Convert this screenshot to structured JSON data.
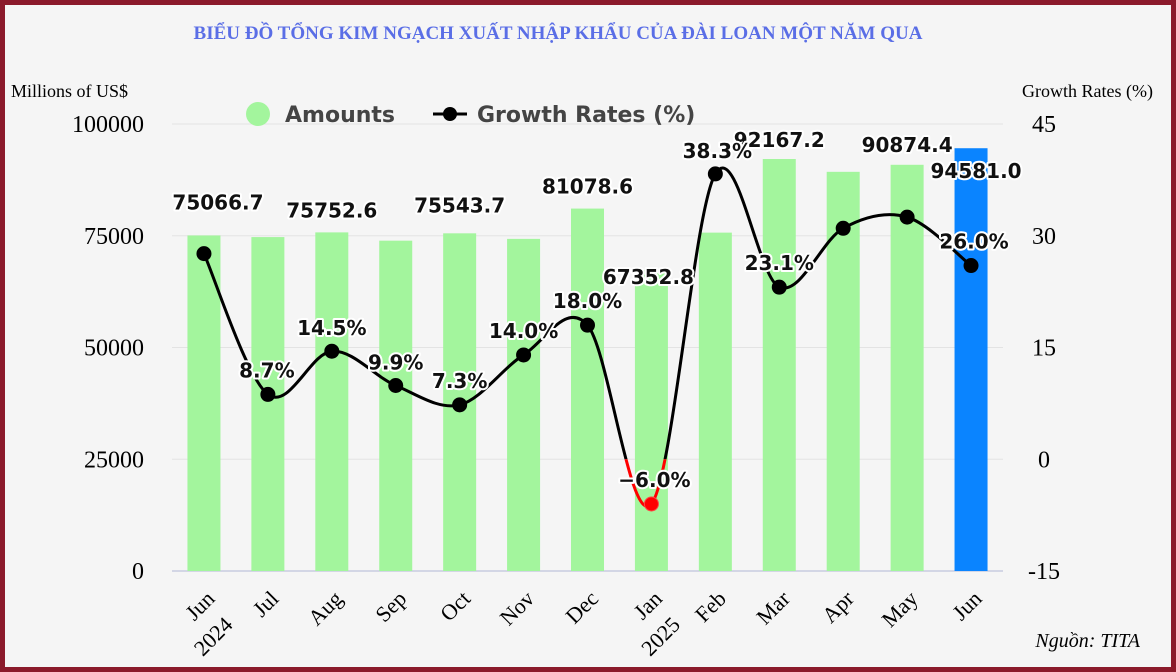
{
  "chart_data": {
    "type": "bar",
    "title": "BIỂU ĐỒ TỔNG KIM NGẠCH XUẤT NHẬP KHẨU CỦA ĐÀI LOAN MỘT NĂM QUA",
    "ylabel_left": "Millions of US$",
    "ylabel_right": "Growth Rates (%)",
    "source": "Nguồn: TITA",
    "categories": [
      "Jun",
      "Jul",
      "Aug",
      "Sep",
      "Oct",
      "Nov",
      "Dec",
      "Jan",
      "Feb",
      "Mar",
      "Apr",
      "May",
      "Jun"
    ],
    "year_labels": [
      {
        "index": 0,
        "label": "2024"
      },
      {
        "index": 7,
        "label": "2025"
      }
    ],
    "ylim_left": [
      0,
      100000
    ],
    "yticks_left": [
      "0",
      "25000",
      "50000",
      "75000",
      "100000"
    ],
    "ylim_right": [
      -15,
      45
    ],
    "yticks_right": [
      "-15",
      "0",
      "15",
      "30",
      "45"
    ],
    "legend_position": "top",
    "grid": true,
    "series": [
      {
        "name": "Amounts",
        "kind": "bar",
        "color": "#a3f59d",
        "highlight_color": "#0a84ff",
        "highlight_index": 12,
        "values": [
          75066.7,
          74700,
          75752.6,
          73900,
          75543.7,
          74300,
          81078.6,
          67352.8,
          75700,
          92167.2,
          89300,
          90874.4,
          94581.0
        ],
        "data_labels": [
          {
            "index": 0,
            "text": "75066.7"
          },
          {
            "index": 2,
            "text": "75752.6"
          },
          {
            "index": 4,
            "text": "75543.7"
          },
          {
            "index": 6,
            "text": "81078.6"
          },
          {
            "index": 7,
            "text": "67352.8"
          },
          {
            "index": 9,
            "text": "92167.2"
          },
          {
            "index": 11,
            "text": "90874.4"
          },
          {
            "index": 12,
            "text": "94581.0"
          }
        ]
      },
      {
        "name": "Growth Rates (%)",
        "kind": "line",
        "color": "#000000",
        "negative_color": "#ff0000",
        "values": [
          27.6,
          8.7,
          14.5,
          9.9,
          7.3,
          14.0,
          18.0,
          -6.0,
          38.3,
          23.1,
          31.0,
          32.5,
          26.0
        ],
        "data_labels": [
          {
            "index": 1,
            "text": "8.7%"
          },
          {
            "index": 2,
            "text": "14.5%"
          },
          {
            "index": 3,
            "text": "9.9%"
          },
          {
            "index": 4,
            "text": "7.3%"
          },
          {
            "index": 5,
            "text": "14.0%"
          },
          {
            "index": 6,
            "text": "18.0%"
          },
          {
            "index": 7,
            "text": "-6.0%"
          },
          {
            "index": 8,
            "text": "38.3%"
          },
          {
            "index": 9,
            "text": "23.1%"
          },
          {
            "index": 12,
            "text": "26.0%"
          }
        ]
      }
    ]
  }
}
